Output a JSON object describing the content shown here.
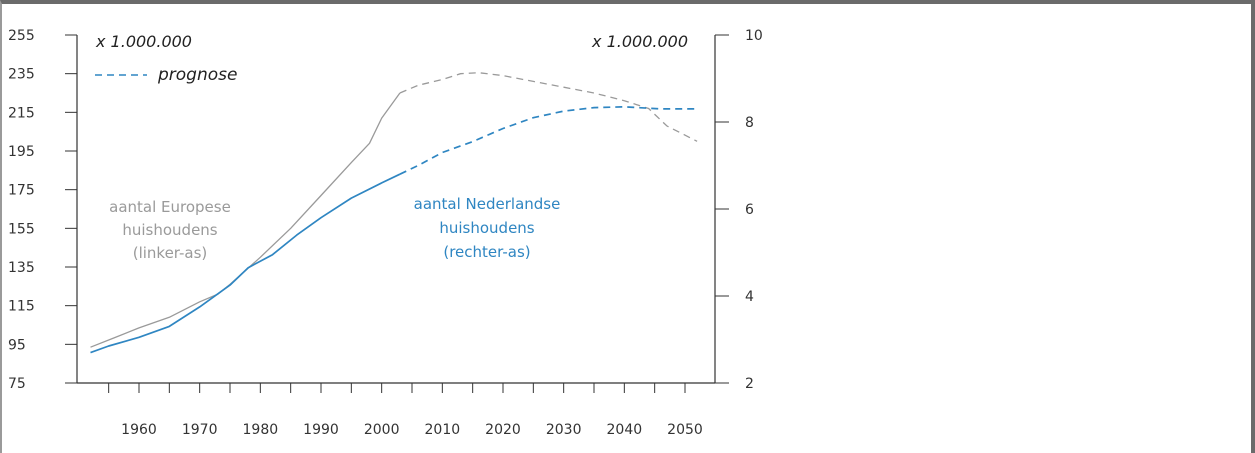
{
  "chart_data": {
    "type": "line",
    "x_ticks": [
      1960,
      1970,
      1980,
      1990,
      2000,
      2010,
      2020,
      2030,
      2040,
      2050
    ],
    "xlim": [
      1950,
      2055
    ],
    "left_axis": {
      "ylim": [
        75,
        255
      ],
      "ticks": [
        255,
        235,
        215,
        195,
        175,
        155,
        135,
        115,
        95,
        75
      ],
      "unit": "x 1.000.000"
    },
    "right_axis": {
      "ylim": [
        2,
        10
      ],
      "ticks": [
        10,
        8,
        6,
        4,
        2
      ],
      "unit": "x 1.000.000"
    },
    "legend": {
      "label": "prognose",
      "placement": "top-left"
    },
    "series": [
      {
        "axis": "left",
        "color": "#9a9a9a",
        "annotation": [
          "aantal Europese",
          "huishoudens",
          "(linker-as)"
        ],
        "values": [
          [
            1952,
            93.5
          ],
          [
            1956,
            98.5
          ],
          [
            1960,
            103.5
          ],
          [
            1965,
            109
          ],
          [
            1970,
            117
          ],
          [
            1973,
            121
          ],
          [
            1975,
            126
          ],
          [
            1980,
            140
          ],
          [
            1985,
            155
          ],
          [
            1990,
            172
          ],
          [
            1995,
            189
          ],
          [
            1998,
            199
          ],
          [
            2000,
            212
          ],
          [
            2003,
            225
          ]
        ],
        "forecast": [
          [
            2003,
            225
          ],
          [
            2006,
            229
          ],
          [
            2010,
            232
          ],
          [
            2013,
            235
          ],
          [
            2016,
            235.5
          ],
          [
            2020,
            234
          ],
          [
            2025,
            231
          ],
          [
            2030,
            228
          ],
          [
            2035,
            225
          ],
          [
            2040,
            221
          ],
          [
            2044,
            217
          ],
          [
            2047,
            208
          ],
          [
            2052,
            200
          ]
        ]
      },
      {
        "axis": "right",
        "color": "#2f86c2",
        "annotation": [
          "aantal Nederlandse",
          "huishoudens",
          "(rechter-as)"
        ],
        "values": [
          [
            1952,
            2.7
          ],
          [
            1955,
            2.85
          ],
          [
            1960,
            3.05
          ],
          [
            1965,
            3.3
          ],
          [
            1970,
            3.75
          ],
          [
            1975,
            4.25
          ],
          [
            1978,
            4.65
          ],
          [
            1982,
            4.95
          ],
          [
            1986,
            5.4
          ],
          [
            1990,
            5.8
          ],
          [
            1995,
            6.25
          ],
          [
            2000,
            6.6
          ],
          [
            2003,
            6.8
          ]
        ],
        "forecast": [
          [
            2003,
            6.8
          ],
          [
            2006,
            7.0
          ],
          [
            2010,
            7.3
          ],
          [
            2015,
            7.55
          ],
          [
            2020,
            7.85
          ],
          [
            2025,
            8.1
          ],
          [
            2030,
            8.25
          ],
          [
            2035,
            8.33
          ],
          [
            2040,
            8.35
          ],
          [
            2046,
            8.3
          ],
          [
            2052,
            8.3
          ]
        ]
      }
    ]
  }
}
